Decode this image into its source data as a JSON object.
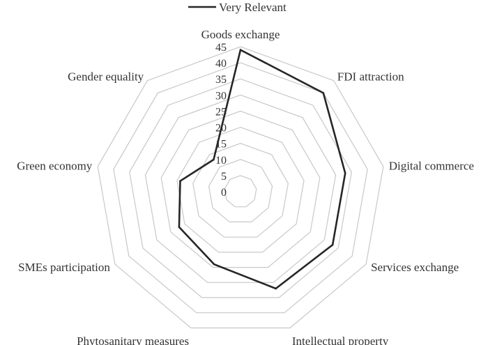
{
  "chart_data": {
    "type": "radar",
    "legend_placement": "top",
    "grid": true,
    "range": [
      0,
      45
    ],
    "ticks": [
      0,
      5,
      10,
      15,
      20,
      25,
      30,
      35,
      40,
      45
    ],
    "categories": [
      "Goods exchange",
      "FDI attraction",
      "Digital commerce",
      "Services exchange",
      "Intellectual property",
      "Phytosanitary measures",
      "SMEs participation",
      "Green  economy",
      "Gender equality"
    ],
    "series": [
      {
        "name": "Very Relevant",
        "color": "#262626",
        "values": [
          44,
          40,
          33,
          33,
          32,
          24,
          22,
          19,
          13
        ]
      }
    ],
    "grid_color": "#c8c8c8"
  }
}
